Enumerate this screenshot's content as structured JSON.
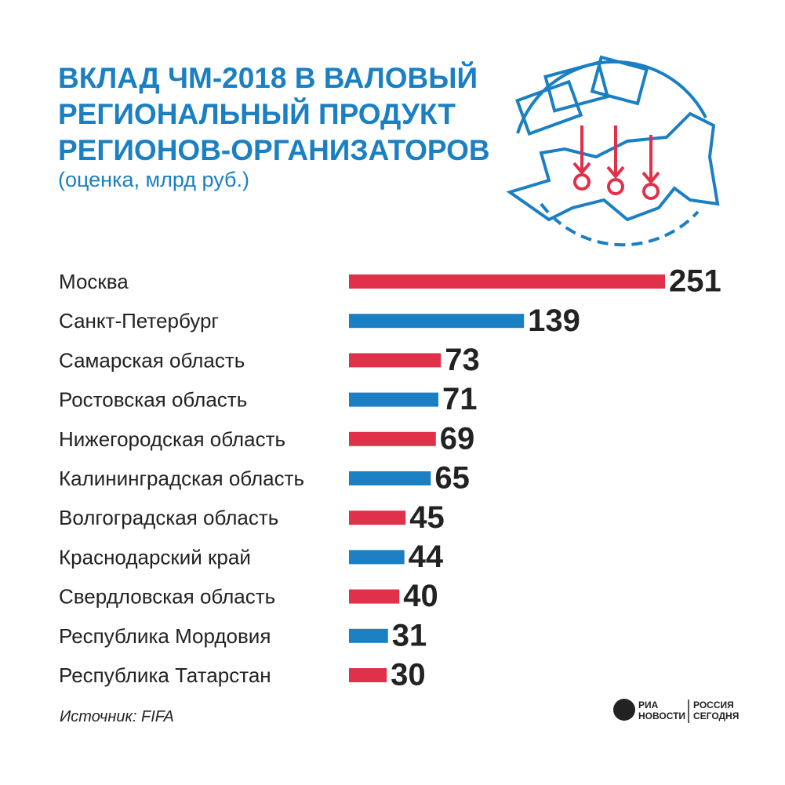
{
  "chart_data": {
    "type": "bar",
    "orientation": "horizontal",
    "title": [
      "ВКЛАД ЧМ-2018 В ВАЛОВЫЙ",
      "РЕГИОНАЛЬНЫЙ ПРОДУКТ",
      "РЕГИОНОВ-ОРГАНИЗАТОРОВ"
    ],
    "subtitle": "(оценка, млрд руб.)",
    "categories": [
      "Москва",
      "Санкт-Петербург",
      "Самарская область",
      "Ростовская область",
      "Нижегородская область",
      "Калининградская область",
      "Волгоградская область",
      "Краснодарский край",
      "Свердловская область",
      "Республика Мордовия",
      "Республика Татарстан"
    ],
    "values": [
      251,
      139,
      73,
      71,
      69,
      65,
      45,
      44,
      40,
      31,
      30
    ],
    "colors": [
      "#e0304a",
      "#1a7fc3",
      "#e0304a",
      "#1a7fc3",
      "#e0304a",
      "#1a7fc3",
      "#e0304a",
      "#1a7fc3",
      "#e0304a",
      "#1a7fc3",
      "#e0304a"
    ],
    "source": "Источник: FIFA",
    "logo": [
      "РИА",
      "НОВОСТИ",
      "РОССИЯ",
      "СЕГОДНЯ"
    ]
  }
}
